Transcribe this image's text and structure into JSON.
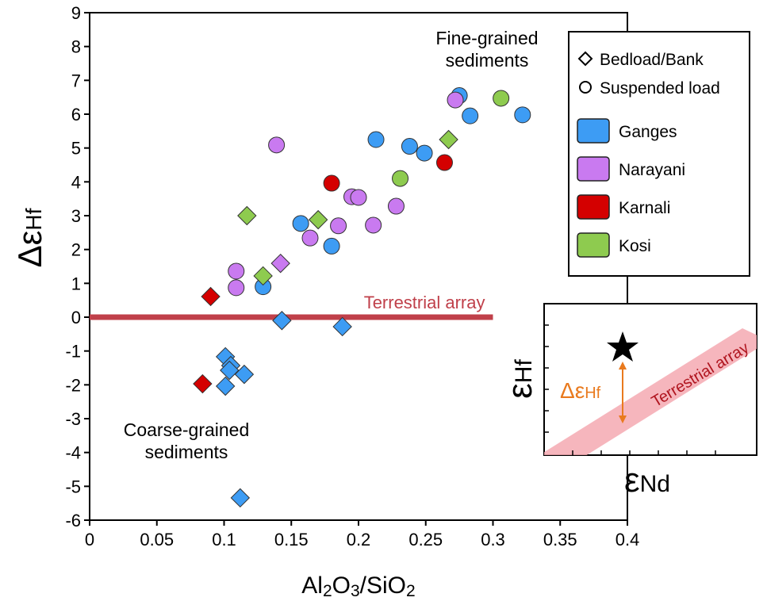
{
  "chart_data": {
    "type": "scatter",
    "xlabel_parts": [
      {
        "text": "Al"
      },
      {
        "text": "2",
        "sub": true
      },
      {
        "text": "O"
      },
      {
        "text": "3",
        "sub": true
      },
      {
        "text": "/SiO"
      },
      {
        "text": "2",
        "sub": true
      }
    ],
    "ylabel": {
      "main": "Δε",
      "sub": "Hf"
    },
    "xlim": [
      0,
      0.4
    ],
    "ylim": [
      -6,
      9
    ],
    "xticks": [
      0,
      0.05,
      0.1,
      0.15,
      0.2,
      0.25,
      0.3,
      0.35,
      0.4
    ],
    "yticks": [
      -6,
      -5,
      -4,
      -3,
      -2,
      -1,
      0,
      1,
      2,
      3,
      4,
      5,
      6,
      7,
      8,
      9
    ],
    "marker_legend": [
      {
        "label": "Bedload/Bank",
        "marker": "diamond"
      },
      {
        "label": "Suspended load",
        "marker": "circle"
      }
    ],
    "series": [
      {
        "name": "Ganges",
        "color": "#3d9cf4",
        "circle": {
          "x": [
            0.275,
            0.283,
            0.322,
            0.213,
            0.238,
            0.249,
            0.157,
            0.18,
            0.129
          ],
          "y": [
            6.55,
            5.95,
            5.98,
            5.25,
            5.05,
            4.85,
            2.77,
            2.1,
            0.9
          ]
        },
        "diamond": {
          "x": [
            0.143,
            0.188,
            0.101,
            0.105,
            0.104,
            0.115,
            0.101,
            0.112
          ],
          "y": [
            -0.1,
            -0.28,
            -1.17,
            -1.43,
            -1.57,
            -1.69,
            -2.04,
            -5.34
          ]
        }
      },
      {
        "name": "Narayani",
        "color": "#c97af0",
        "circle": {
          "x": [
            0.272,
            0.139,
            0.195,
            0.2,
            0.228,
            0.211,
            0.185,
            0.164,
            0.109,
            0.109
          ],
          "y": [
            6.42,
            5.09,
            3.56,
            3.54,
            3.28,
            2.72,
            2.7,
            2.34,
            1.36,
            0.87
          ]
        },
        "diamond": {
          "x": [
            0.142
          ],
          "y": [
            1.59
          ]
        }
      },
      {
        "name": "Karnali",
        "color": "#d40000",
        "circle": {
          "x": [
            0.18,
            0.264
          ],
          "y": [
            3.96,
            4.57
          ]
        },
        "diamond": {
          "x": [
            0.09,
            0.084
          ],
          "y": [
            0.61,
            -1.97
          ]
        }
      },
      {
        "name": "Kosi",
        "color": "#8ecb4f",
        "circle": {
          "x": [
            0.306,
            0.231
          ],
          "y": [
            6.47,
            4.1
          ]
        },
        "diamond": {
          "x": [
            0.267,
            0.117,
            0.17,
            0.129
          ],
          "y": [
            5.25,
            3.0,
            2.88,
            1.22
          ]
        }
      }
    ],
    "reference_line": {
      "y": 0,
      "x": [
        0,
        0.3
      ],
      "label": "Terrestrial array",
      "color": "#c0404a"
    },
    "annotations": [
      [
        "Fine-grained",
        "sediments"
      ],
      [
        "Coarse-grained",
        "sediments"
      ]
    ]
  },
  "inset": {
    "ylabel": {
      "main": "ε",
      "sub": "Hf"
    },
    "xlabel": {
      "main": "ε",
      "sub": "Nd"
    },
    "arrow_label": {
      "main": "Δε",
      "sub": "Hf"
    },
    "band_label": "Terrestrial array"
  }
}
